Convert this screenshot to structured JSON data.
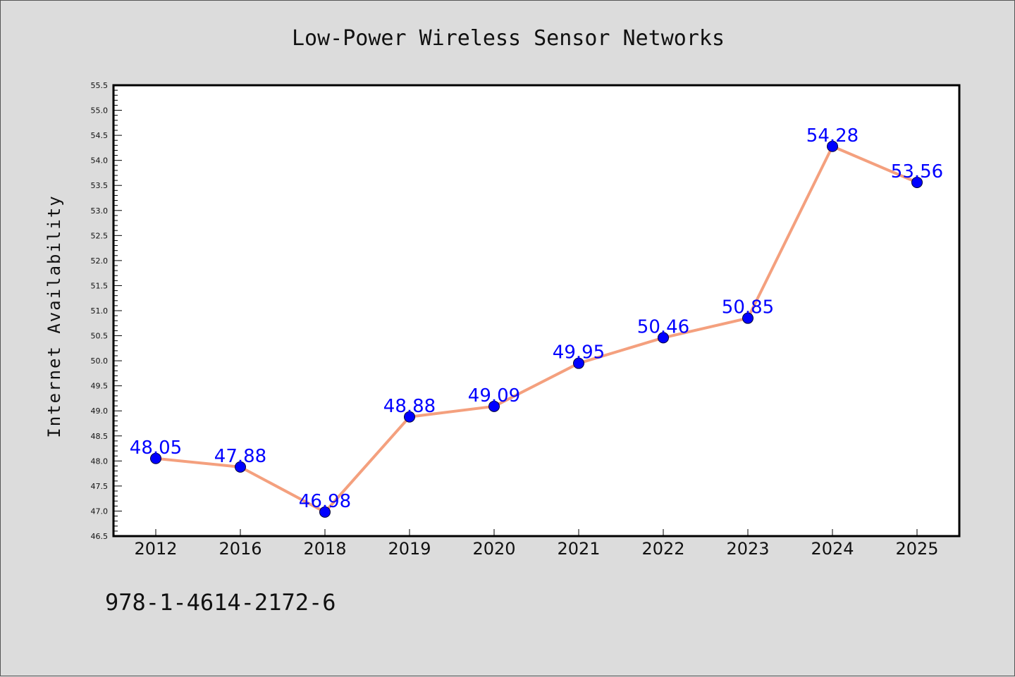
{
  "chart_data": {
    "type": "line",
    "title": "Low-Power Wireless Sensor Networks",
    "xlabel": "",
    "ylabel": "Internet Availability",
    "categories": [
      "2012",
      "2016",
      "2018",
      "2019",
      "2020",
      "2021",
      "2022",
      "2023",
      "2024",
      "2025"
    ],
    "series": [
      {
        "values": [
          48.05,
          47.88,
          46.98,
          48.88,
          49.09,
          49.95,
          50.46,
          50.85,
          54.28,
          53.56
        ]
      }
    ],
    "data_labels": [
      "48.05",
      "47.88",
      "46.98",
      "48.88",
      "49.09",
      "49.95",
      "50.46",
      "50.85",
      "54.28",
      "53.56"
    ],
    "ylim": [
      46.5,
      55.5
    ],
    "yticks": [
      "46.5",
      "47.0",
      "47.5",
      "48.0",
      "48.5",
      "49.0",
      "49.5",
      "50.0",
      "50.5",
      "51.0",
      "51.5",
      "52.0",
      "52.5",
      "53.0",
      "53.5",
      "54.0",
      "54.5",
      "55.0",
      "55.5"
    ],
    "grid": false,
    "line_color": "#f4a07e",
    "marker_color": "#0000ff",
    "label_color": "#0000ff"
  },
  "footer": {
    "identifier": "978-1-4614-2172-6"
  }
}
